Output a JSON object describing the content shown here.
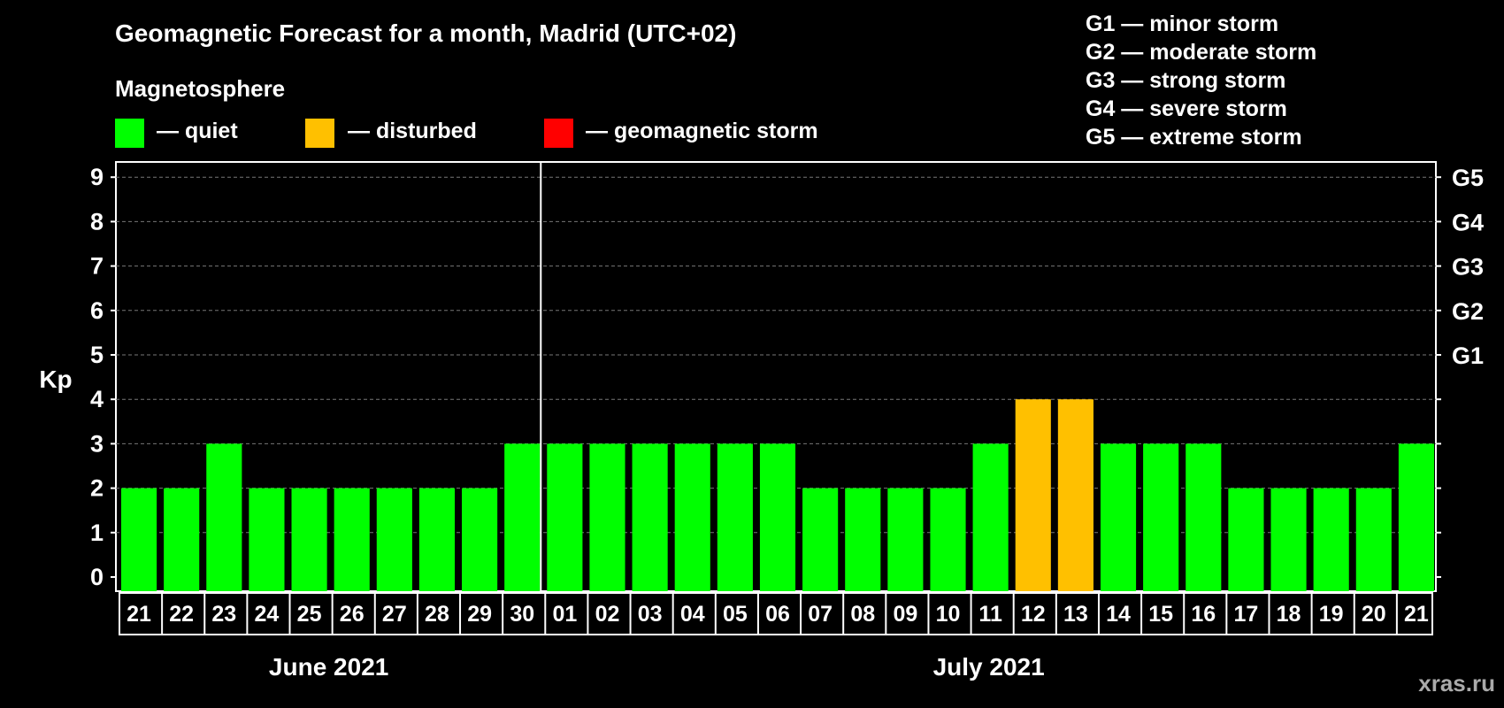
{
  "title": "Geomagnetic Forecast for a month, Madrid (UTC+02)",
  "legend": {
    "heading": "Magnetosphere",
    "items": [
      {
        "label": "— quiet",
        "color": "#00ff00"
      },
      {
        "label": "— disturbed",
        "color": "#ffc000"
      },
      {
        "label": "— geomagnetic storm",
        "color": "#ff0000"
      }
    ]
  },
  "storm_levels": [
    "G1 — minor storm",
    "G2 — moderate storm",
    "G3 — strong storm",
    "G4 — severe storm",
    "G5 — extreme storm"
  ],
  "watermark": "xras.ru",
  "chart_data": {
    "type": "bar",
    "title": "Geomagnetic Forecast for a month, Madrid (UTC+02)",
    "ylabel": "Kp",
    "ylim": [
      0,
      9
    ],
    "yticks": [
      "0",
      "1",
      "2",
      "3",
      "4",
      "5",
      "6",
      "7",
      "8",
      "9"
    ],
    "right_axis": [
      {
        "kp": 5,
        "label": "G1"
      },
      {
        "kp": 6,
        "label": "G2"
      },
      {
        "kp": 7,
        "label": "G3"
      },
      {
        "kp": 8,
        "label": "G4"
      },
      {
        "kp": 9,
        "label": "G5"
      }
    ],
    "categories": [
      "21",
      "22",
      "23",
      "24",
      "25",
      "26",
      "27",
      "28",
      "29",
      "30",
      "01",
      "02",
      "03",
      "04",
      "05",
      "06",
      "07",
      "08",
      "09",
      "10",
      "11",
      "12",
      "13",
      "14",
      "15",
      "16",
      "17",
      "18",
      "19",
      "20",
      "21"
    ],
    "values": [
      2,
      2,
      3,
      2,
      2,
      2,
      2,
      2,
      2,
      3,
      3,
      3,
      3,
      3,
      3,
      3,
      2,
      2,
      2,
      2,
      3,
      4,
      4,
      3,
      3,
      3,
      2,
      2,
      2,
      2,
      3
    ],
    "months": [
      {
        "label": "June 2021",
        "start": 0,
        "end": 9
      },
      {
        "label": "July 2021",
        "start": 10,
        "end": 30
      }
    ],
    "grid": true,
    "colors": {
      "quiet": "#00ff00",
      "disturbed": "#ffc000",
      "storm": "#ff0000"
    }
  }
}
